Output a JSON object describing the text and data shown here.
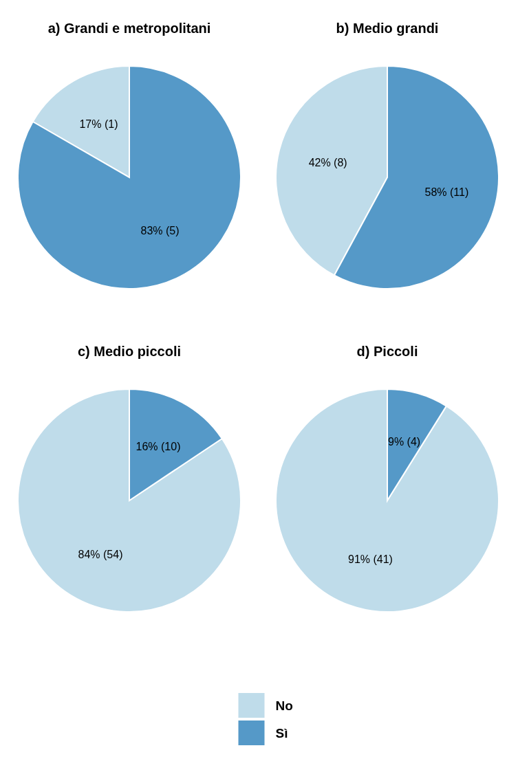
{
  "chart_data": [
    {
      "type": "pie",
      "title": "a) Grandi e metropolitani",
      "categories": [
        "No",
        "Sì"
      ],
      "values": [
        1,
        5
      ],
      "colors": [
        "#bfdcea",
        "#5599c8"
      ],
      "value_labels": [
        "17% (1)",
        "83% (5)"
      ],
      "legend": "bottom"
    },
    {
      "type": "pie",
      "title": "b) Medio grandi",
      "categories": [
        null,
        null
      ],
      "values": [
        8,
        11
      ],
      "colors": [
        "#bfdcea",
        "#5599c8"
      ],
      "value_labels": [
        "42% (8)",
        "58% (11)"
      ]
    },
    {
      "type": "pie",
      "title": "c) Medio piccoli",
      "categories": [
        null,
        null
      ],
      "values": [
        54,
        10
      ],
      "colors": [
        "#bfdcea",
        "#5599c8"
      ],
      "value_labels": [
        "84% (54)",
        "16% (10)"
      ]
    },
    {
      "type": "pie",
      "title": "d) Piccoli",
      "categories": [
        null,
        null
      ],
      "values": [
        41,
        4
      ],
      "colors": [
        "#bfdcea",
        "#5599c8"
      ],
      "value_labels": [
        "91% (41)",
        "9% (4)"
      ]
    }
  ]
}
